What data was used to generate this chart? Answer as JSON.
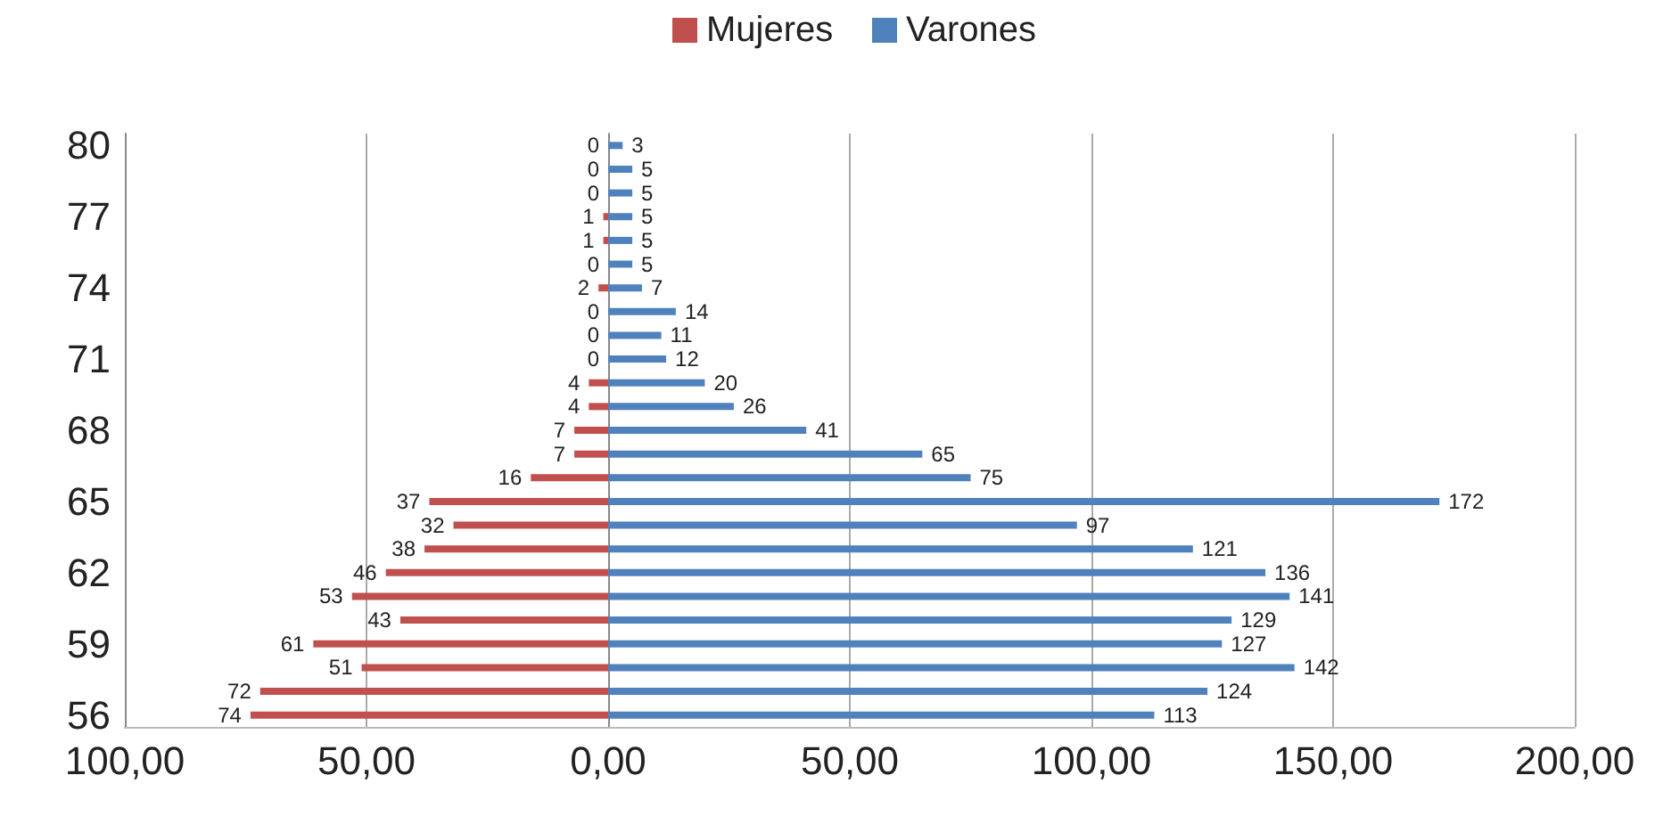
{
  "chart_data": [
    {
      "type": "bar",
      "orientation": "horizontal",
      "categories": [
        "80",
        null,
        null,
        "77",
        null,
        null,
        "74",
        null,
        null,
        "71",
        null,
        null,
        "68",
        null,
        null,
        "65",
        null,
        null,
        "62",
        null,
        null,
        "59",
        null,
        null,
        "56"
      ],
      "series": [
        {
          "name": "Mujeres",
          "color": "#c0504d",
          "values": [
            0,
            0,
            0,
            1,
            1,
            0,
            2,
            0,
            0,
            0,
            4,
            4,
            7,
            7,
            16,
            37,
            32,
            38,
            46,
            53,
            43,
            61,
            51,
            72,
            74
          ]
        }
      ],
      "xlim": [
        100,
        0
      ],
      "xticks": [
        {
          "value": 100,
          "label": "100,00"
        },
        {
          "value": 50,
          "label": "50,00"
        },
        {
          "value": 0,
          "label": "0,00"
        }
      ],
      "data_labels": true,
      "grid": "x",
      "legend": "top"
    },
    {
      "type": "bar",
      "orientation": "horizontal",
      "categories": [
        "80",
        null,
        null,
        "77",
        null,
        null,
        "74",
        null,
        null,
        "71",
        null,
        null,
        "68",
        null,
        null,
        "65",
        null,
        null,
        "62",
        null,
        null,
        "59",
        null,
        null,
        "56"
      ],
      "series": [
        {
          "name": "Varones",
          "color": "#4f81bd",
          "values": [
            3,
            5,
            5,
            5,
            5,
            5,
            7,
            14,
            11,
            12,
            20,
            26,
            41,
            65,
            75,
            172,
            97,
            121,
            136,
            141,
            129,
            127,
            142,
            124,
            113
          ]
        }
      ],
      "xlim": [
        0,
        200
      ],
      "xticks": [
        {
          "value": 0,
          "label": null
        },
        {
          "value": 50,
          "label": "50,00"
        },
        {
          "value": 100,
          "label": "100,00"
        },
        {
          "value": 150,
          "label": "150,00"
        },
        {
          "value": 200,
          "label": "200,00"
        }
      ],
      "tick_labels": "x",
      "data_labels": true,
      "grid": "x",
      "legend": "top"
    }
  ]
}
